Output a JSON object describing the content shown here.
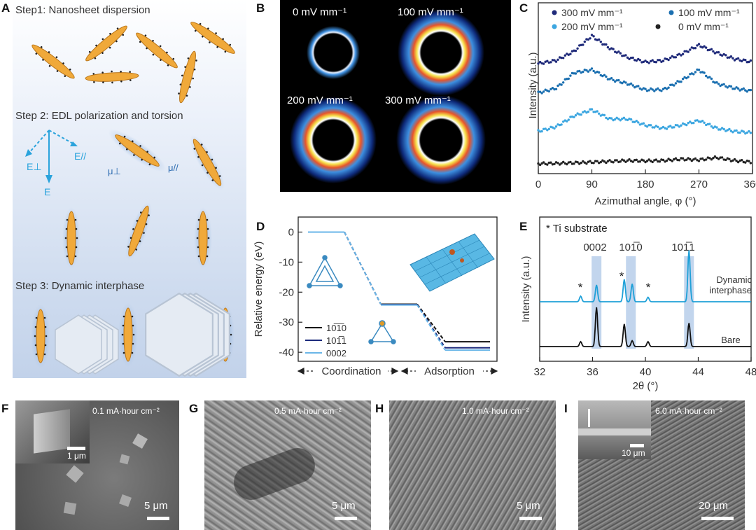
{
  "panel_labels": {
    "a": "A",
    "b": "B",
    "c": "C",
    "d": "D",
    "e": "E",
    "f": "F",
    "g": "G",
    "h": "H",
    "i": "I"
  },
  "panel_a": {
    "step1": "Step1:  Nanosheet dispersion",
    "step2": "Step 2:  EDL polarization and torsion",
    "step3": "Step 3: Dynamic interphase",
    "e_perp": "E⊥",
    "e_par": "E//",
    "e": "E",
    "mu_perp": "μ⊥",
    "mu_par": "μ//"
  },
  "panel_b": {
    "labels": [
      "0 mV mm⁻¹",
      "100 mV mm⁻¹",
      "200 mV mm⁻¹",
      "300 mV mm⁻¹"
    ]
  },
  "panel_c": {
    "legend": [
      "300 mV mm⁻¹",
      "100 mV mm⁻¹",
      "200 mV mm⁻¹",
      "0 mV mm⁻¹"
    ],
    "ylabel": "Intensity (a.u.)",
    "xlabel": "Azimuthal angle, φ (°)",
    "xticks": [
      "0",
      "90",
      "180",
      "270",
      "360"
    ]
  },
  "panel_d": {
    "ylabel": "Relative energy  (eV)",
    "yticks": [
      "0",
      "-10",
      "-20",
      "-30",
      "-40"
    ],
    "legend": [
      "10̅1̅0",
      "101̅1",
      "0002"
    ],
    "region1": "Coordination",
    "region2": "Adsorption"
  },
  "panel_e": {
    "title": "* Ti  substrate",
    "peaks": [
      "0002",
      "101̅0",
      "101̅1"
    ],
    "ylabel": "Intensity (a.u.)",
    "xlabel": "2θ (°)",
    "xticks": [
      "32",
      "36",
      "40",
      "44",
      "48"
    ],
    "label_top": "Dynamic interphase",
    "label_bottom": "Bare",
    "star": "*"
  },
  "sem": {
    "f": {
      "label": "0.1 mA·hour cm⁻²",
      "scale": "5 μm",
      "inset_scale": "1 μm"
    },
    "g": {
      "label": "0.5 mA·hour cm⁻²",
      "scale": "5 μm"
    },
    "h": {
      "label": "1.0 mA·hour cm⁻²",
      "scale": "5 μm"
    },
    "i": {
      "label": "6.0 mA·hour cm⁻²",
      "scale": "20 μm",
      "inset_scale": "10 μm"
    }
  },
  "chart_data": [
    {
      "type": "line",
      "panel": "C",
      "xlabel": "Azimuthal angle, φ (°)",
      "ylabel": "Intensity (a.u.)",
      "xlim": [
        0,
        360
      ],
      "x": [
        0,
        30,
        60,
        90,
        120,
        150,
        180,
        210,
        240,
        270,
        300,
        330,
        360
      ],
      "series": [
        {
          "name": "300 mV mm⁻¹",
          "color": "#1f2a7a",
          "values": [
            6.6,
            6.8,
            7.4,
            8.4,
            7.6,
            7.0,
            6.7,
            6.8,
            7.2,
            7.8,
            7.3,
            6.9,
            6.7
          ]
        },
        {
          "name": "100 mV mm⁻¹",
          "color": "#1a6fb0",
          "values": [
            4.7,
            5.0,
            6.0,
            6.2,
            5.6,
            5.3,
            4.9,
            4.9,
            5.5,
            6.2,
            5.3,
            5.0,
            4.8
          ]
        },
        {
          "name": "200 mV mm⁻¹",
          "color": "#3ca6e0",
          "values": [
            2.2,
            2.5,
            3.2,
            3.6,
            3.0,
            3.0,
            2.6,
            2.4,
            2.6,
            2.9,
            2.4,
            2.2,
            2.1
          ]
        },
        {
          "name": "0 mV mm⁻¹",
          "color": "#222222",
          "values": [
            0.1,
            0.12,
            0.15,
            0.2,
            0.25,
            0.3,
            0.28,
            0.3,
            0.4,
            0.35,
            0.5,
            0.3,
            0.2
          ]
        }
      ]
    },
    {
      "type": "line",
      "panel": "D",
      "ylabel": "Relative energy  (eV)",
      "ylim": [
        -43,
        5
      ],
      "yticks": [
        0,
        -10,
        -20,
        -30,
        -40
      ],
      "series": [
        {
          "name": "10̅1̅0",
          "color": "#111111",
          "values": [
            0,
            -24,
            -36.5
          ]
        },
        {
          "name": "101̅1",
          "color": "#1c2a7c",
          "values": [
            0,
            -24,
            -38.5
          ]
        },
        {
          "name": "0002",
          "color": "#6ab6e8",
          "values": [
            0,
            -24,
            -39.3
          ]
        }
      ]
    },
    {
      "type": "line",
      "panel": "E",
      "xlabel": "2θ (°)",
      "ylabel": "Intensity (a.u.)",
      "xlim": [
        32,
        48
      ],
      "series": [
        {
          "name": "Dynamic interphase",
          "color": "#1ea0d8",
          "peaks": [
            [
              35.1,
              0.5
            ],
            [
              36.3,
              1.5
            ],
            [
              38.4,
              2.0
            ],
            [
              39.0,
              1.6
            ],
            [
              40.2,
              0.4
            ],
            [
              43.3,
              4.6
            ]
          ]
        },
        {
          "name": "Bare",
          "color": "#111111",
          "peaks": [
            [
              35.1,
              0.5
            ],
            [
              36.3,
              4.0
            ],
            [
              38.4,
              2.3
            ],
            [
              39.0,
              0.6
            ],
            [
              40.2,
              0.5
            ],
            [
              43.3,
              2.4
            ]
          ]
        }
      ]
    }
  ]
}
